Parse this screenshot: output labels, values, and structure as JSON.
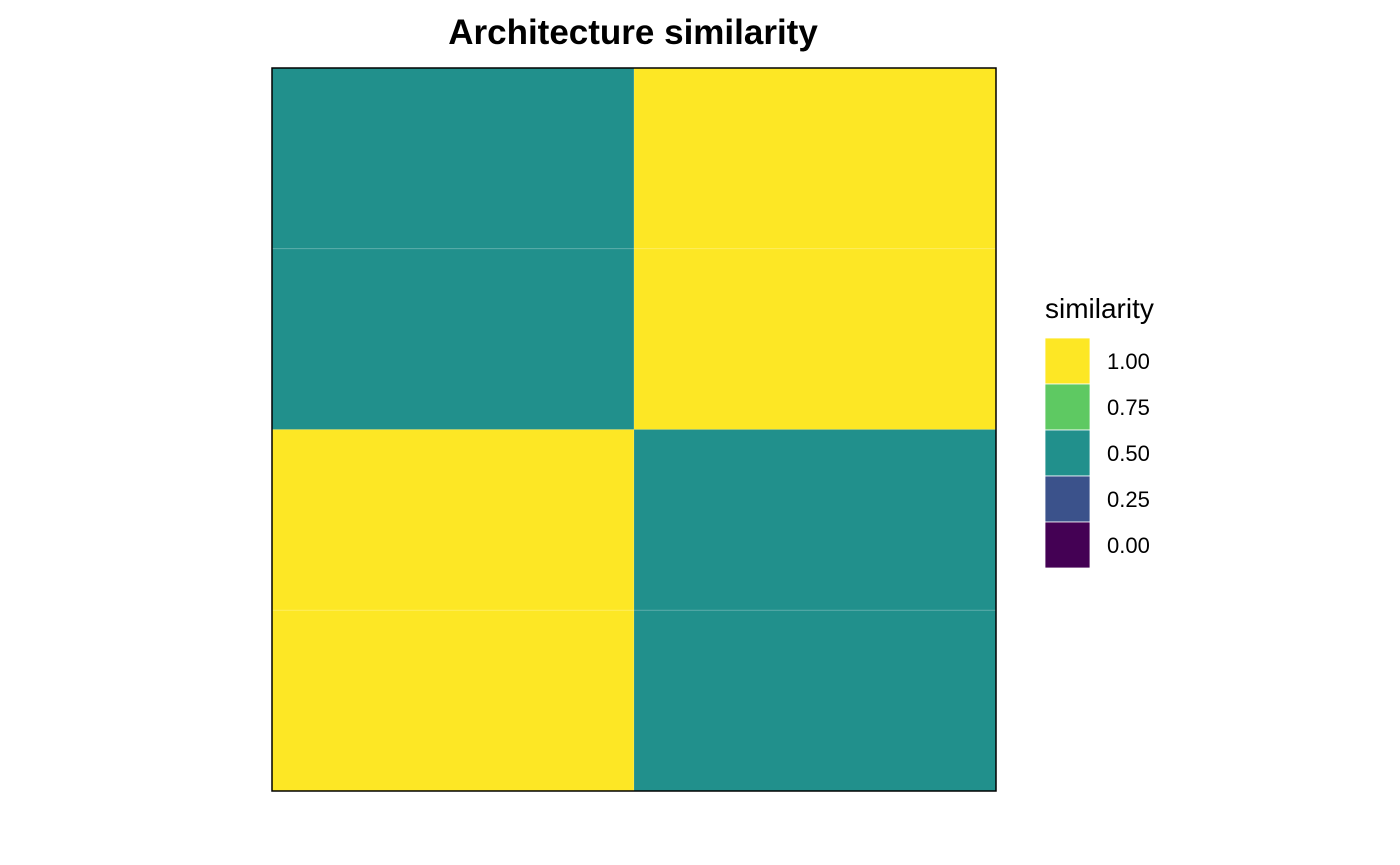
{
  "chart_data": {
    "type": "heatmap",
    "title": "Architecture similarity",
    "xlabel": "",
    "ylabel": "",
    "x_tick_labels": [],
    "y_tick_labels": [],
    "rows": 4,
    "cols": 2,
    "values": [
      [
        0.5,
        1.0
      ],
      [
        0.5,
        1.0
      ],
      [
        1.0,
        0.5
      ],
      [
        1.0,
        0.5
      ]
    ],
    "color_range": [
      0,
      1
    ],
    "legend": {
      "title": "similarity",
      "placement": "right",
      "breaks": [
        {
          "label": "1.00",
          "value": 1.0,
          "color": "#FDE725"
        },
        {
          "label": "0.75",
          "value": 0.75,
          "color": "#5EC962"
        },
        {
          "label": "0.50",
          "value": 0.5,
          "color": "#21908C"
        },
        {
          "label": "0.25",
          "value": 0.25,
          "color": "#3B528B"
        },
        {
          "label": "0.00",
          "value": 0.0,
          "color": "#440154"
        }
      ]
    },
    "colors": {
      "low": "#440154",
      "mid": "#21908C",
      "high": "#FDE725",
      "panel_border": "#000000"
    }
  }
}
